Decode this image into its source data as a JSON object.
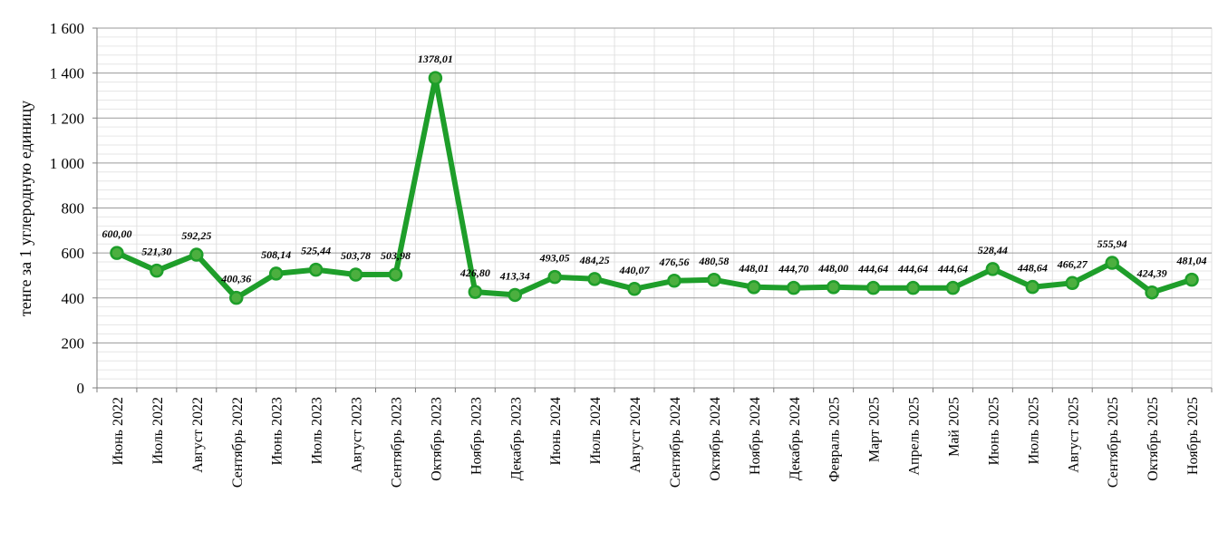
{
  "chart_data": {
    "type": "line",
    "title": "",
    "xlabel": "",
    "ylabel": "тенге за 1 углеродную единицу",
    "ylim": [
      0,
      1600
    ],
    "y_ticks": [
      "0",
      "200",
      "400",
      "600",
      "800",
      "1 000",
      "1 200",
      "1 400",
      "1 600"
    ],
    "grid": true,
    "legend": "none",
    "line_color": "#1e9e2a",
    "categories": [
      "Июнь 2022",
      "Июль 2022",
      "Август 2022",
      "Сентябрь 2022",
      "Июнь 2023",
      "Июль 2023",
      "Август 2023",
      "Сентябрь 2023",
      "Октябрь 2023",
      "Ноябрь 2023",
      "Декабрь 2023",
      "Июнь 2024",
      "Июль 2024",
      "Август 2024",
      "Сентябрь 2024",
      "Октябрь 2024",
      "Ноябрь 2024",
      "Декабрь 2024",
      "Февраль 2025",
      "Март 2025",
      "Апрель 2025",
      "Май 2025",
      "Июнь 2025",
      "Июль 2025",
      "Август 2025",
      "Сентябрь 2025",
      "Октябрь 2025",
      "Ноябрь 2025"
    ],
    "series": [
      {
        "values": [
          600.0,
          521.3,
          592.25,
          400.36,
          508.14,
          525.44,
          503.78,
          503.98,
          1378.01,
          426.8,
          413.34,
          493.05,
          484.25,
          440.07,
          476.56,
          480.58,
          448.01,
          444.7,
          448.0,
          444.64,
          444.64,
          444.64,
          528.44,
          448.64,
          466.27,
          555.94,
          424.39,
          481.04
        ],
        "labels": [
          "600,00",
          "521,30",
          "592,25",
          "400,36",
          "508,14",
          "525,44",
          "503,78",
          "503,98",
          "1378,01",
          "426,80",
          "413,34",
          "493,05",
          "484,25",
          "440,07",
          "476,56",
          "480,58",
          "448,01",
          "444,70",
          "448,00",
          "444,64",
          "444,64",
          "444,64",
          "528,44",
          "448,64",
          "466,27",
          "555,94",
          "424,39",
          "481,04"
        ]
      }
    ]
  }
}
